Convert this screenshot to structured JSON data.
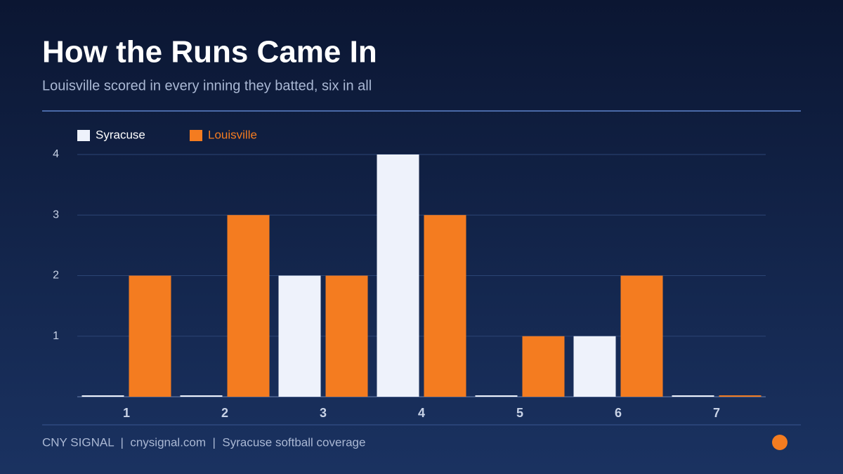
{
  "chart_data": {
    "type": "bar",
    "title": "How the Runs Came In",
    "subtitle": "Louisville scored in every inning they batted, six in all",
    "categories": [
      "1",
      "2",
      "3",
      "4",
      "5",
      "6",
      "7"
    ],
    "series": [
      {
        "name": "Syracuse",
        "color": "#eef2fb",
        "values": [
          0,
          0,
          2,
          4,
          0,
          1,
          0
        ]
      },
      {
        "name": "Louisville",
        "color": "#f47c20",
        "values": [
          2,
          3,
          2,
          3,
          1,
          2,
          0
        ]
      }
    ],
    "ylim": [
      0,
      4
    ],
    "yticks": [
      1,
      2,
      3,
      4
    ],
    "grid": true,
    "footer": "CNY SIGNAL  |  cnysignal.com  |  Syracuse softball coverage"
  }
}
